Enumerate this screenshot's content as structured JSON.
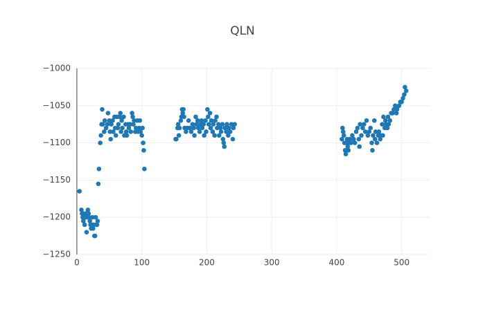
{
  "chart_data": {
    "type": "scatter",
    "title": "QLN",
    "color": "#1f77b4",
    "grid": true,
    "xlim": [
      -1,
      543
    ],
    "ylim": [
      -1250,
      -1000
    ],
    "xticks": [
      0,
      100,
      200,
      300,
      400,
      500
    ],
    "yticks": [
      {
        "value": -1000,
        "label": "−1000"
      },
      {
        "value": -1050,
        "label": "−1050"
      },
      {
        "value": -1100,
        "label": "−1100"
      },
      {
        "value": -1150,
        "label": "−1150"
      },
      {
        "value": -1200,
        "label": "−1200"
      },
      {
        "value": -1250,
        "label": "−1250"
      }
    ],
    "x": [
      4,
      7,
      8,
      9,
      10,
      11,
      12,
      13,
      14,
      15,
      16,
      17,
      18,
      19,
      20,
      21,
      22,
      23,
      24,
      25,
      26,
      27,
      28,
      29,
      30,
      31,
      32,
      33,
      34,
      36,
      37,
      38,
      39,
      40,
      42,
      43,
      45,
      47,
      48,
      50,
      51,
      52,
      53,
      55,
      56,
      58,
      59,
      60,
      62,
      63,
      64,
      66,
      67,
      68,
      69,
      70,
      72,
      73,
      75,
      76,
      77,
      79,
      80,
      82,
      83,
      85,
      86,
      87,
      88,
      90,
      91,
      93,
      94,
      96,
      97,
      98,
      100,
      101,
      102,
      103,
      104,
      152,
      153,
      155,
      156,
      157,
      158,
      160,
      161,
      162,
      163,
      164,
      165,
      166,
      168,
      170,
      172,
      174,
      176,
      178,
      180,
      181,
      183,
      184,
      186,
      187,
      189,
      190,
      192,
      193,
      195,
      196,
      198,
      199,
      201,
      202,
      203,
      205,
      206,
      207,
      209,
      210,
      212,
      213,
      215,
      216,
      218,
      219,
      221,
      222,
      224,
      225,
      226,
      227,
      228,
      230,
      231,
      233,
      234,
      236,
      238,
      240,
      241,
      243,
      408,
      409,
      410,
      411,
      412,
      413,
      414,
      415,
      416,
      417,
      418,
      419,
      420,
      422,
      424,
      426,
      428,
      430,
      432,
      434,
      435,
      436,
      438,
      440,
      442,
      444,
      446,
      448,
      450,
      452,
      454,
      455,
      456,
      458,
      459,
      460,
      462,
      464,
      465,
      467,
      468,
      470,
      471,
      472,
      474,
      475,
      476,
      478,
      479,
      480,
      482,
      484,
      486,
      488,
      490,
      492,
      493,
      496,
      498,
      500,
      502,
      504,
      505,
      507
    ],
    "values": [
      -1165,
      -1190,
      -1195,
      -1200,
      -1205,
      -1195,
      -1210,
      -1200,
      -1195,
      -1220,
      -1200,
      -1190,
      -1195,
      -1200,
      -1205,
      -1210,
      -1215,
      -1210,
      -1200,
      -1215,
      -1210,
      -1225,
      -1225,
      -1200,
      -1210,
      -1210,
      -1205,
      -1155,
      -1135,
      -1100,
      -1090,
      -1075,
      -1055,
      -1075,
      -1085,
      -1070,
      -1080,
      -1075,
      -1060,
      -1070,
      -1085,
      -1095,
      -1075,
      -1070,
      -1085,
      -1065,
      -1080,
      -1090,
      -1065,
      -1080,
      -1075,
      -1065,
      -1060,
      -1085,
      -1070,
      -1080,
      -1065,
      -1090,
      -1075,
      -1085,
      -1090,
      -1075,
      -1080,
      -1075,
      -1085,
      -1060,
      -1065,
      -1075,
      -1070,
      -1085,
      -1080,
      -1070,
      -1085,
      -1080,
      -1070,
      -1085,
      -1090,
      -1080,
      -1100,
      -1110,
      -1135,
      -1095,
      -1095,
      -1080,
      -1075,
      -1090,
      -1080,
      -1070,
      -1065,
      -1055,
      -1060,
      -1055,
      -1065,
      -1080,
      -1085,
      -1080,
      -1070,
      -1080,
      -1085,
      -1075,
      -1080,
      -1090,
      -1065,
      -1075,
      -1070,
      -1080,
      -1085,
      -1075,
      -1070,
      -1080,
      -1075,
      -1090,
      -1070,
      -1085,
      -1055,
      -1065,
      -1075,
      -1060,
      -1080,
      -1070,
      -1085,
      -1075,
      -1090,
      -1070,
      -1065,
      -1080,
      -1075,
      -1090,
      -1080,
      -1085,
      -1075,
      -1095,
      -1100,
      -1105,
      -1080,
      -1085,
      -1075,
      -1090,
      -1080,
      -1085,
      -1075,
      -1095,
      -1080,
      -1075,
      -1095,
      -1080,
      -1085,
      -1090,
      -1100,
      -1110,
      -1115,
      -1100,
      -1095,
      -1105,
      -1110,
      -1100,
      -1095,
      -1100,
      -1090,
      -1095,
      -1100,
      -1085,
      -1080,
      -1095,
      -1105,
      -1075,
      -1090,
      -1080,
      -1075,
      -1085,
      -1070,
      -1090,
      -1085,
      -1080,
      -1100,
      -1110,
      -1090,
      -1070,
      -1095,
      -1085,
      -1100,
      -1090,
      -1085,
      -1095,
      -1090,
      -1075,
      -1090,
      -1065,
      -1080,
      -1070,
      -1075,
      -1080,
      -1065,
      -1075,
      -1070,
      -1060,
      -1060,
      -1055,
      -1050,
      -1060,
      -1055,
      -1050,
      -1045,
      -1045,
      -1040,
      -1035,
      -1025,
      -1030
    ]
  }
}
